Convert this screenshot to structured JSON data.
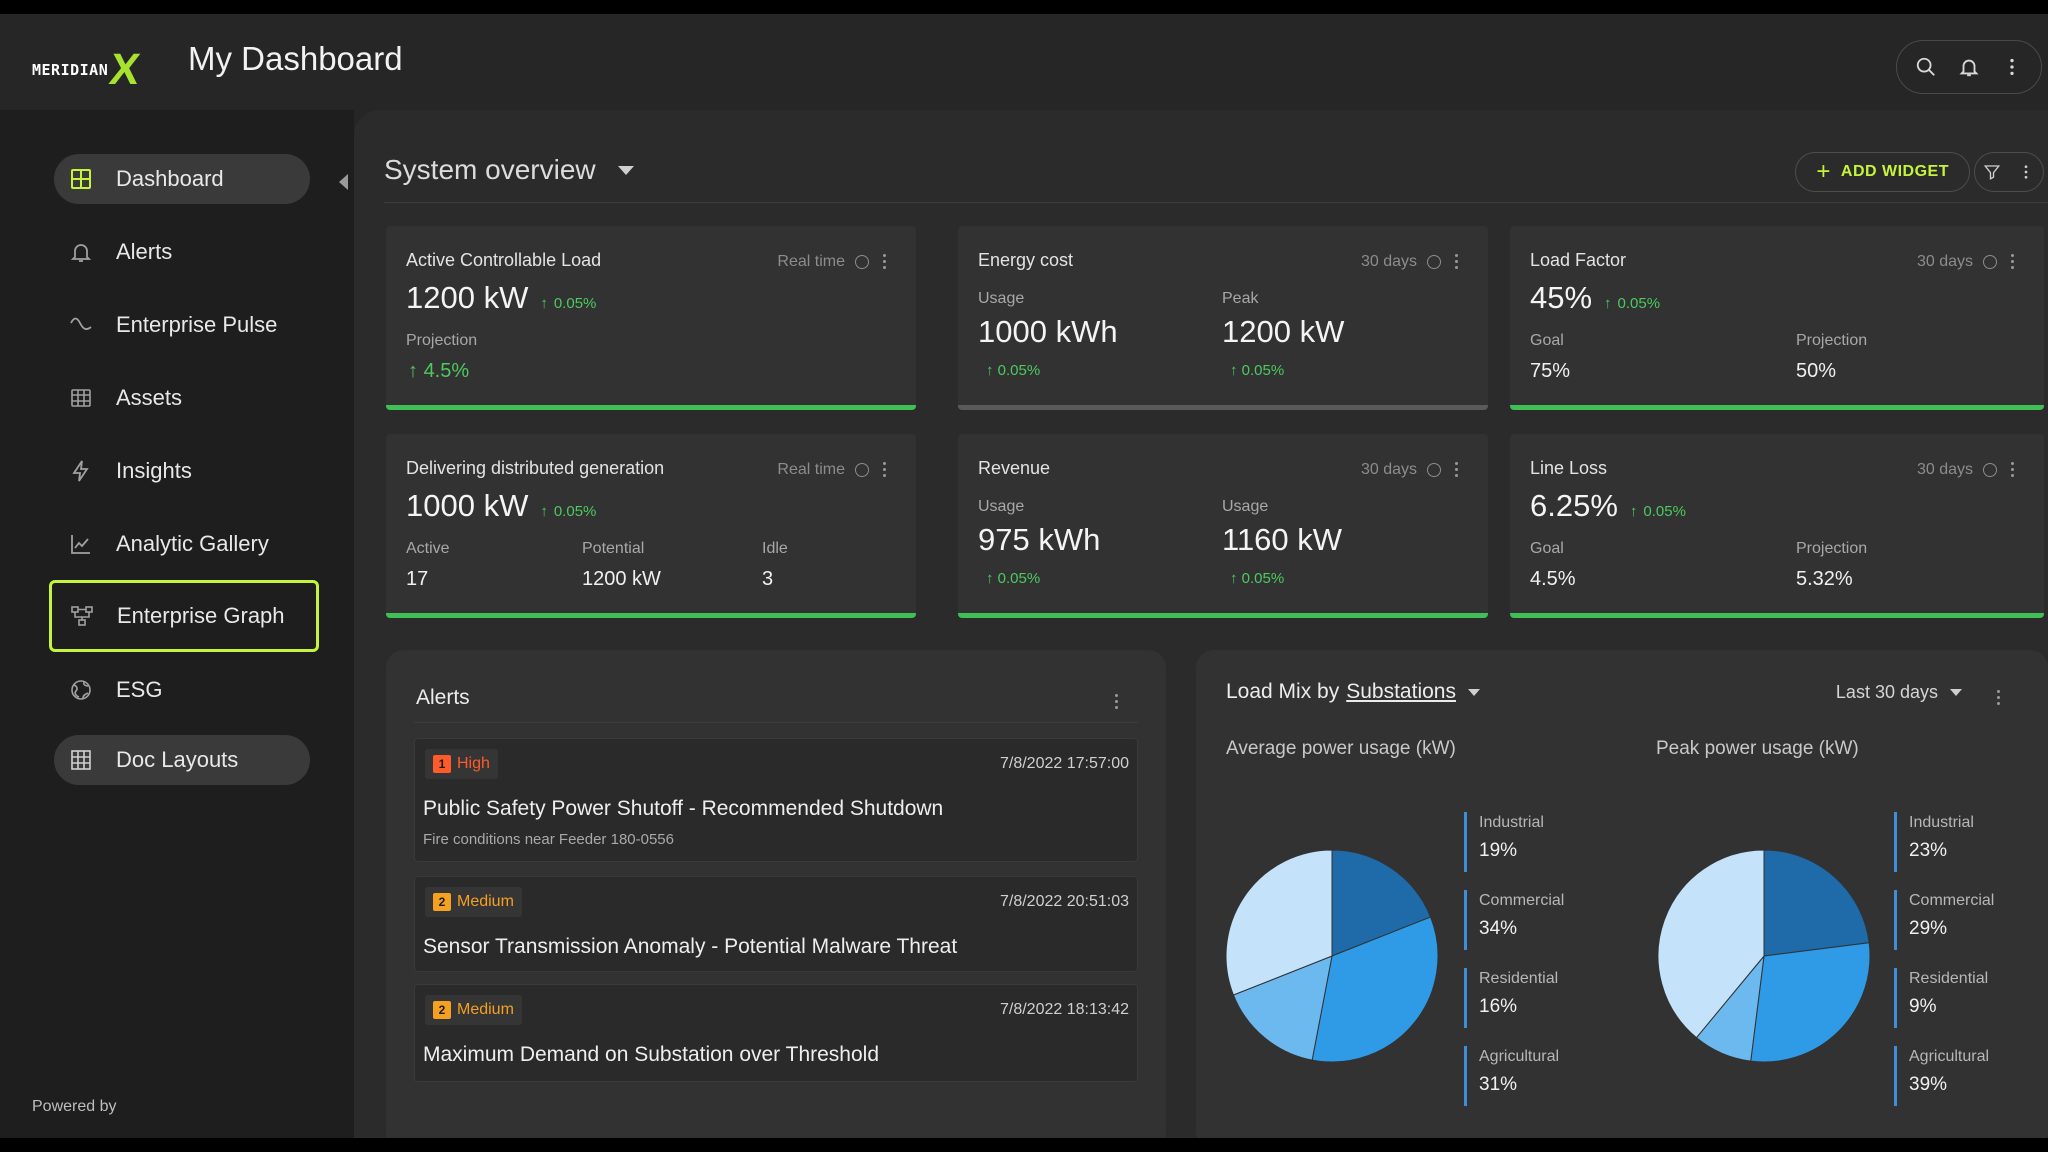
{
  "app": {
    "logo_word": "MERIDIAN",
    "logo_mark": "X",
    "title": "My Dashboard"
  },
  "sidebar": {
    "items": [
      {
        "label": "Dashboard",
        "icon": "grid-icon"
      },
      {
        "label": "Alerts",
        "icon": "bell-icon"
      },
      {
        "label": "Enterprise Pulse",
        "icon": "wave-icon"
      },
      {
        "label": "Assets",
        "icon": "globe-grid-icon"
      },
      {
        "label": "Insights",
        "icon": "bolt-icon"
      },
      {
        "label": "Analytic Gallery",
        "icon": "line-chart-icon"
      },
      {
        "label": "Enterprise Graph",
        "icon": "graph-nodes-icon"
      },
      {
        "label": "ESG",
        "icon": "globe-icon"
      },
      {
        "label": "Doc Layouts",
        "icon": "table-icon"
      }
    ],
    "powered_by": "Powered by"
  },
  "main": {
    "section_title": "System overview",
    "add_widget": "ADD WIDGET",
    "cards": {
      "acl": {
        "title": "Active Controllable Load",
        "meta": "Real time",
        "value": "1200 kW",
        "delta": "0.05%",
        "proj_label": "Projection",
        "proj_value": "4.5%"
      },
      "energy": {
        "title": "Energy cost",
        "meta": "30 days",
        "usage_label": "Usage",
        "usage_value": "1000 kWh",
        "usage_delta": "0.05%",
        "peak_label": "Peak",
        "peak_value": "1200 kW",
        "peak_delta": "0.05%"
      },
      "loadfactor": {
        "title": "Load Factor",
        "meta": "30 days",
        "value": "45%",
        "delta": "0.05%",
        "goal_label": "Goal",
        "goal_value": "75%",
        "proj_label": "Projection",
        "proj_value": "50%"
      },
      "ddg": {
        "title": "Delivering distributed generation",
        "meta": "Real time",
        "value": "1000 kW",
        "delta": "0.05%",
        "active_label": "Active",
        "active_value": "17",
        "potential_label": "Potential",
        "potential_value": "1200 kW",
        "idle_label": "Idle",
        "idle_value": "3"
      },
      "revenue": {
        "title": "Revenue",
        "meta": "30 days",
        "usage1_label": "Usage",
        "usage1_value": "975 kWh",
        "usage1_delta": "0.05%",
        "usage2_label": "Usage",
        "usage2_value": "1160 kW",
        "usage2_delta": "0.05%"
      },
      "lineloss": {
        "title": "Line Loss",
        "meta": "30 days",
        "value": "6.25%",
        "delta": "0.05%",
        "goal_label": "Goal",
        "goal_value": "4.5%",
        "proj_label": "Projection",
        "proj_value": "5.32%"
      }
    },
    "alerts": {
      "title": "Alerts",
      "items": [
        {
          "num": "1",
          "severity": "High",
          "timestamp": "7/8/2022 17:57:00",
          "title": "Public Safety Power Shutoff - Recommended Shutdown",
          "desc": "Fire conditions near Feeder 180-0556"
        },
        {
          "num": "2",
          "severity": "Medium",
          "timestamp": "7/8/2022 20:51:03",
          "title": "Sensor Transmission Anomaly - Potential Malware Threat"
        },
        {
          "num": "2",
          "severity": "Medium",
          "timestamp": "7/8/2022 18:13:42",
          "title": "Maximum Demand on Substation over Threshold"
        }
      ]
    },
    "loadmix": {
      "title_prefix": "Load Mix by",
      "title_link": "Substations",
      "period": "Last 30 days"
    }
  },
  "colors": {
    "accent": "#c6f43a",
    "positive": "#4cc95f",
    "high": "#ff5b2a",
    "medium": "#f4a020",
    "industrial": "#1f6aa8",
    "commercial": "#2f9ae6",
    "residential": "#6cb9ef",
    "agricultural": "#c4e3fa"
  },
  "chart_data": [
    {
      "type": "pie",
      "title": "Average power usage (kW)",
      "categories": [
        "Industrial",
        "Commercial",
        "Residential",
        "Agricultural"
      ],
      "values": [
        19,
        34,
        16,
        31
      ],
      "labels": [
        "19%",
        "34%",
        "16%",
        "31%"
      ],
      "legend": "right"
    },
    {
      "type": "pie",
      "title": "Peak power usage (kW)",
      "categories": [
        "Industrial",
        "Commercial",
        "Residential",
        "Agricultural"
      ],
      "values": [
        23,
        29,
        9,
        39
      ],
      "labels": [
        "23%",
        "29%",
        "9%",
        "39%"
      ],
      "legend": "right"
    }
  ]
}
